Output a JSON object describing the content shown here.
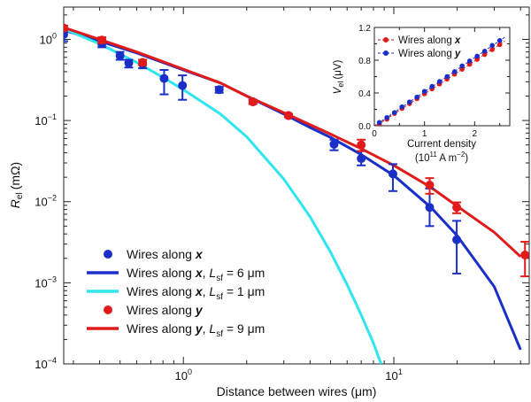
{
  "chart_data": [
    {
      "type": "scatter",
      "xscale": "log",
      "yscale": "log",
      "xlabel": "Distance between wires (μm)",
      "ylabel_main": "R",
      "ylabel_sub": "el",
      "ylabel_unit": "(mΩ)",
      "xlim": [
        0.27,
        44
      ],
      "ylim": [
        0.0001,
        2.5
      ],
      "xticks": [
        {
          "value": 1,
          "base": "10",
          "exp": "0"
        },
        {
          "value": 10,
          "base": "10",
          "exp": "1"
        }
      ],
      "yticks": [
        {
          "value": 1,
          "base": "10",
          "exp": "0"
        },
        {
          "value": 0.1,
          "base": "10",
          "exp": "−1"
        },
        {
          "value": 0.01,
          "base": "10",
          "exp": "−2"
        },
        {
          "value": 0.001,
          "base": "10",
          "exp": "−3"
        },
        {
          "value": 0.0001,
          "base": "10",
          "exp": "−4"
        }
      ],
      "colors": {
        "wires_x": "#1a2fc8",
        "wires_y": "#e11a1a",
        "fit_x_short": "#2ee6f0"
      },
      "series": [
        {
          "name": "Wires along x",
          "kind": "points",
          "color_key": "wires_x",
          "legend": {
            "pre": "Wires along ",
            "var": "x"
          },
          "points": [
            {
              "x": 0.27,
              "y": 1.15,
              "lo": 0.95,
              "hi": 1.3
            },
            {
              "x": 0.41,
              "y": 0.88,
              "lo": 0.8,
              "hi": 0.95
            },
            {
              "x": 0.5,
              "y": 0.63,
              "lo": 0.56,
              "hi": 0.7
            },
            {
              "x": 0.55,
              "y": 0.51,
              "lo": 0.45,
              "hi": 0.56
            },
            {
              "x": 0.64,
              "y": 0.5,
              "lo": 0.44,
              "hi": 0.56
            },
            {
              "x": 0.81,
              "y": 0.33,
              "lo": 0.21,
              "hi": 0.42
            },
            {
              "x": 0.99,
              "y": 0.27,
              "lo": 0.18,
              "hi": 0.36
            },
            {
              "x": 1.48,
              "y": 0.24,
              "lo": 0.22,
              "hi": 0.26
            },
            {
              "x": 2.14,
              "y": 0.17,
              "lo": 0.16,
              "hi": 0.18
            },
            {
              "x": 3.16,
              "y": 0.115,
              "lo": 0.11,
              "hi": 0.12
            },
            {
              "x": 5.2,
              "y": 0.051,
              "lo": 0.043,
              "hi": 0.058
            },
            {
              "x": 7.0,
              "y": 0.034,
              "lo": 0.028,
              "hi": 0.042
            },
            {
              "x": 9.9,
              "y": 0.022,
              "lo": 0.0135,
              "hi": 0.029
            },
            {
              "x": 14.8,
              "y": 0.0085,
              "lo": 0.005,
              "hi": 0.0145
            },
            {
              "x": 19.9,
              "y": 0.0034,
              "lo": 0.0013,
              "hi": 0.0058
            }
          ]
        },
        {
          "name": "Wires along x, L_sf = 6 μm",
          "kind": "line",
          "color_key": "wires_x",
          "legend": {
            "pre": "Wires along ",
            "var": "x",
            "mid": ", L",
            "sub": "sf",
            "post": " = 6 μm"
          },
          "points": [
            {
              "x": 0.27,
              "y": 1.3
            },
            {
              "x": 0.4,
              "y": 0.95
            },
            {
              "x": 0.6,
              "y": 0.68
            },
            {
              "x": 1.0,
              "y": 0.42
            },
            {
              "x": 1.5,
              "y": 0.29
            },
            {
              "x": 2.0,
              "y": 0.2
            },
            {
              "x": 3.0,
              "y": 0.12
            },
            {
              "x": 4.0,
              "y": 0.082
            },
            {
              "x": 5.0,
              "y": 0.062
            },
            {
              "x": 7.0,
              "y": 0.038
            },
            {
              "x": 10,
              "y": 0.021
            },
            {
              "x": 15,
              "y": 0.0085
            },
            {
              "x": 20,
              "y": 0.0038
            },
            {
              "x": 30,
              "y": 0.0009
            },
            {
              "x": 40,
              "y": 0.00015
            }
          ]
        },
        {
          "name": "Wires along x, L_sf = 1 μm",
          "kind": "line",
          "color_key": "fit_x_short",
          "legend": {
            "pre": "Wires along ",
            "var": "x",
            "mid": ", L",
            "sub": "sf",
            "post": " = 1 μm"
          },
          "points": [
            {
              "x": 0.27,
              "y": 1.35
            },
            {
              "x": 0.4,
              "y": 0.88
            },
            {
              "x": 0.6,
              "y": 0.52
            },
            {
              "x": 0.8,
              "y": 0.34
            },
            {
              "x": 1.0,
              "y": 0.24
            },
            {
              "x": 1.5,
              "y": 0.12
            },
            {
              "x": 2.0,
              "y": 0.063
            },
            {
              "x": 3.0,
              "y": 0.019
            },
            {
              "x": 4.0,
              "y": 0.0065
            },
            {
              "x": 5.0,
              "y": 0.0024
            },
            {
              "x": 6.0,
              "y": 0.00095
            },
            {
              "x": 7.0,
              "y": 0.0004
            },
            {
              "x": 8.0,
              "y": 0.00018
            },
            {
              "x": 8.7,
              "y": 0.0001
            }
          ]
        },
        {
          "name": "Wires along y",
          "kind": "points",
          "color_key": "wires_y",
          "legend": {
            "pre": "Wires along ",
            "var": "y"
          },
          "points": [
            {
              "x": 0.27,
              "y": 1.38,
              "lo": 1.28,
              "hi": 1.48
            },
            {
              "x": 0.41,
              "y": 0.98,
              "lo": 0.9,
              "hi": 1.06
            },
            {
              "x": 0.64,
              "y": 0.52,
              "lo": 0.48,
              "hi": 0.56
            },
            {
              "x": 2.14,
              "y": 0.17,
              "lo": 0.16,
              "hi": 0.18
            },
            {
              "x": 3.16,
              "y": 0.115,
              "lo": 0.11,
              "hi": 0.12
            },
            {
              "x": 7.0,
              "y": 0.05,
              "lo": 0.042,
              "hi": 0.058
            },
            {
              "x": 14.8,
              "y": 0.016,
              "lo": 0.0125,
              "hi": 0.0195
            },
            {
              "x": 19.9,
              "y": 0.0085,
              "lo": 0.0072,
              "hi": 0.0098
            },
            {
              "x": 42,
              "y": 0.0022,
              "lo": 0.0012,
              "hi": 0.0032
            }
          ]
        },
        {
          "name": "Wires along y, L_sf = 9 μm",
          "kind": "line",
          "color_key": "wires_y",
          "legend": {
            "pre": "Wires along ",
            "var": "y",
            "mid": ", L",
            "sub": "sf",
            "post": " = 9 μm"
          },
          "points": [
            {
              "x": 0.27,
              "y": 1.4
            },
            {
              "x": 0.4,
              "y": 1.0
            },
            {
              "x": 0.6,
              "y": 0.7
            },
            {
              "x": 1.0,
              "y": 0.43
            },
            {
              "x": 1.5,
              "y": 0.29
            },
            {
              "x": 2.0,
              "y": 0.2
            },
            {
              "x": 3.0,
              "y": 0.125
            },
            {
              "x": 5.0,
              "y": 0.068
            },
            {
              "x": 7.0,
              "y": 0.045
            },
            {
              "x": 10,
              "y": 0.028
            },
            {
              "x": 15,
              "y": 0.015
            },
            {
              "x": 20,
              "y": 0.0088
            },
            {
              "x": 30,
              "y": 0.0042
            },
            {
              "x": 40,
              "y": 0.0021
            }
          ]
        }
      ]
    },
    {
      "type": "line",
      "xlabel": "Current density",
      "xlabel_unit_pre": "(10",
      "xlabel_unit_exp": "11",
      "xlabel_unit_mid": " A m",
      "xlabel_unit_exp2": "−2",
      "xlabel_unit_post": ")",
      "ylabel_main": "V",
      "ylabel_sub": "el",
      "ylabel_unit": "(μV)",
      "xlim": [
        0,
        2.7
      ],
      "ylim": [
        0,
        1.2
      ],
      "xticks": [
        {
          "value": 0,
          "label": "0"
        },
        {
          "value": 1,
          "label": "1"
        },
        {
          "value": 2,
          "label": "2"
        }
      ],
      "yticks": [
        {
          "value": 0,
          "label": "0.0"
        },
        {
          "value": 0.4,
          "label": "0.4"
        },
        {
          "value": 0.8,
          "label": "0.8"
        },
        {
          "value": 1.2,
          "label": "1.2"
        }
      ],
      "series": [
        {
          "name": "Wires along x",
          "color_key": "wires_y",
          "legend": {
            "pre": "Wires along ",
            "var": "x"
          },
          "x": [
            0.1,
            0.25,
            0.4,
            0.55,
            0.7,
            0.85,
            1.0,
            1.15,
            1.3,
            1.45,
            1.6,
            1.75,
            1.9,
            2.05,
            2.2,
            2.35,
            2.5
          ],
          "y": [
            0.02,
            0.08,
            0.15,
            0.21,
            0.27,
            0.33,
            0.39,
            0.45,
            0.51,
            0.57,
            0.63,
            0.69,
            0.75,
            0.81,
            0.87,
            0.93,
            0.99
          ]
        },
        {
          "name": "Wires along y",
          "color_key": "wires_x",
          "legend": {
            "pre": "Wires along ",
            "var": "y"
          },
          "x": [
            0.1,
            0.25,
            0.4,
            0.55,
            0.7,
            0.85,
            1.0,
            1.15,
            1.3,
            1.45,
            1.6,
            1.75,
            1.9,
            2.05,
            2.2,
            2.35,
            2.5
          ],
          "y": [
            0.04,
            0.1,
            0.16,
            0.23,
            0.29,
            0.35,
            0.42,
            0.48,
            0.54,
            0.6,
            0.66,
            0.73,
            0.79,
            0.85,
            0.91,
            0.98,
            1.04
          ]
        }
      ]
    }
  ]
}
